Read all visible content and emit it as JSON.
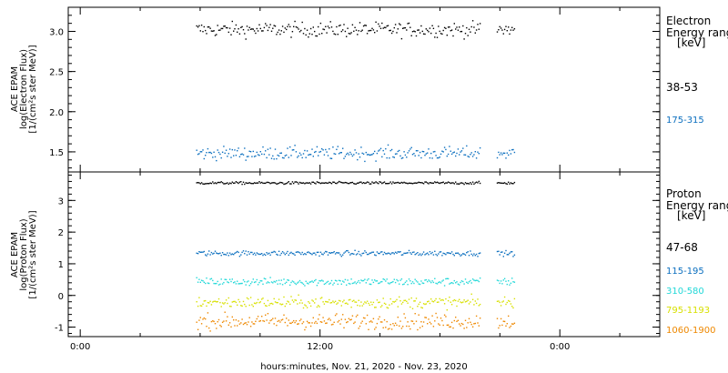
{
  "chart_data": [
    {
      "type": "scatter",
      "instrument_label": "ACE EPAM",
      "ylabel": "log(Electron Flux)",
      "yunits": "[1/(cm²s ster MeV)]",
      "ylim": [
        1.25,
        3.3
      ],
      "yticks": [
        "1.5",
        "2.0",
        "2.5",
        "3.0"
      ],
      "legend_title": [
        "Electron",
        "Energy range",
        "[keV]"
      ],
      "series": [
        {
          "name": "38-53",
          "color": "#000000",
          "mean": 3.03,
          "spread": 0.045
        },
        {
          "name": "175-315",
          "color": "#0b6fbf",
          "mean": 1.49,
          "spread": 0.04
        }
      ]
    },
    {
      "type": "scatter",
      "instrument_label": "ACE EPAM",
      "ylabel": "log(Proton Flux)",
      "yunits": "[1/(cm²s ster MeV)]",
      "ylim": [
        -1.3,
        3.9
      ],
      "yticks": [
        "-1",
        "0",
        "1",
        "2",
        "3"
      ],
      "legend_title": [
        "Proton",
        "Energy range",
        "[keV]"
      ],
      "series": [
        {
          "name": "47-68",
          "color": "#000000",
          "mean": 3.57,
          "spread": 0.02
        },
        {
          "name": "115-195",
          "color": "#0b6fbf",
          "mean": 1.35,
          "spread": 0.04
        },
        {
          "name": "310-580",
          "color": "#22d8d8",
          "mean": 0.45,
          "spread": 0.06
        },
        {
          "name": "795-1193",
          "color": "#d8e000",
          "mean": -0.2,
          "spread": 0.09
        },
        {
          "name": "1060-1900",
          "color": "#ee8800",
          "mean": -0.8,
          "spread": 0.12
        }
      ]
    }
  ],
  "time_axis": {
    "tick_labels": [
      "0:00",
      "12:00",
      "0:00"
    ],
    "tick_hours": [
      0,
      12,
      24
    ],
    "range_hours": [
      -0.6,
      29
    ],
    "data_hours": [
      5.8,
      21.7
    ],
    "gap_hours": [
      20.0,
      20.8
    ],
    "xlabel": "hours:minutes, Nov. 21, 2020 - Nov. 23, 2020"
  }
}
